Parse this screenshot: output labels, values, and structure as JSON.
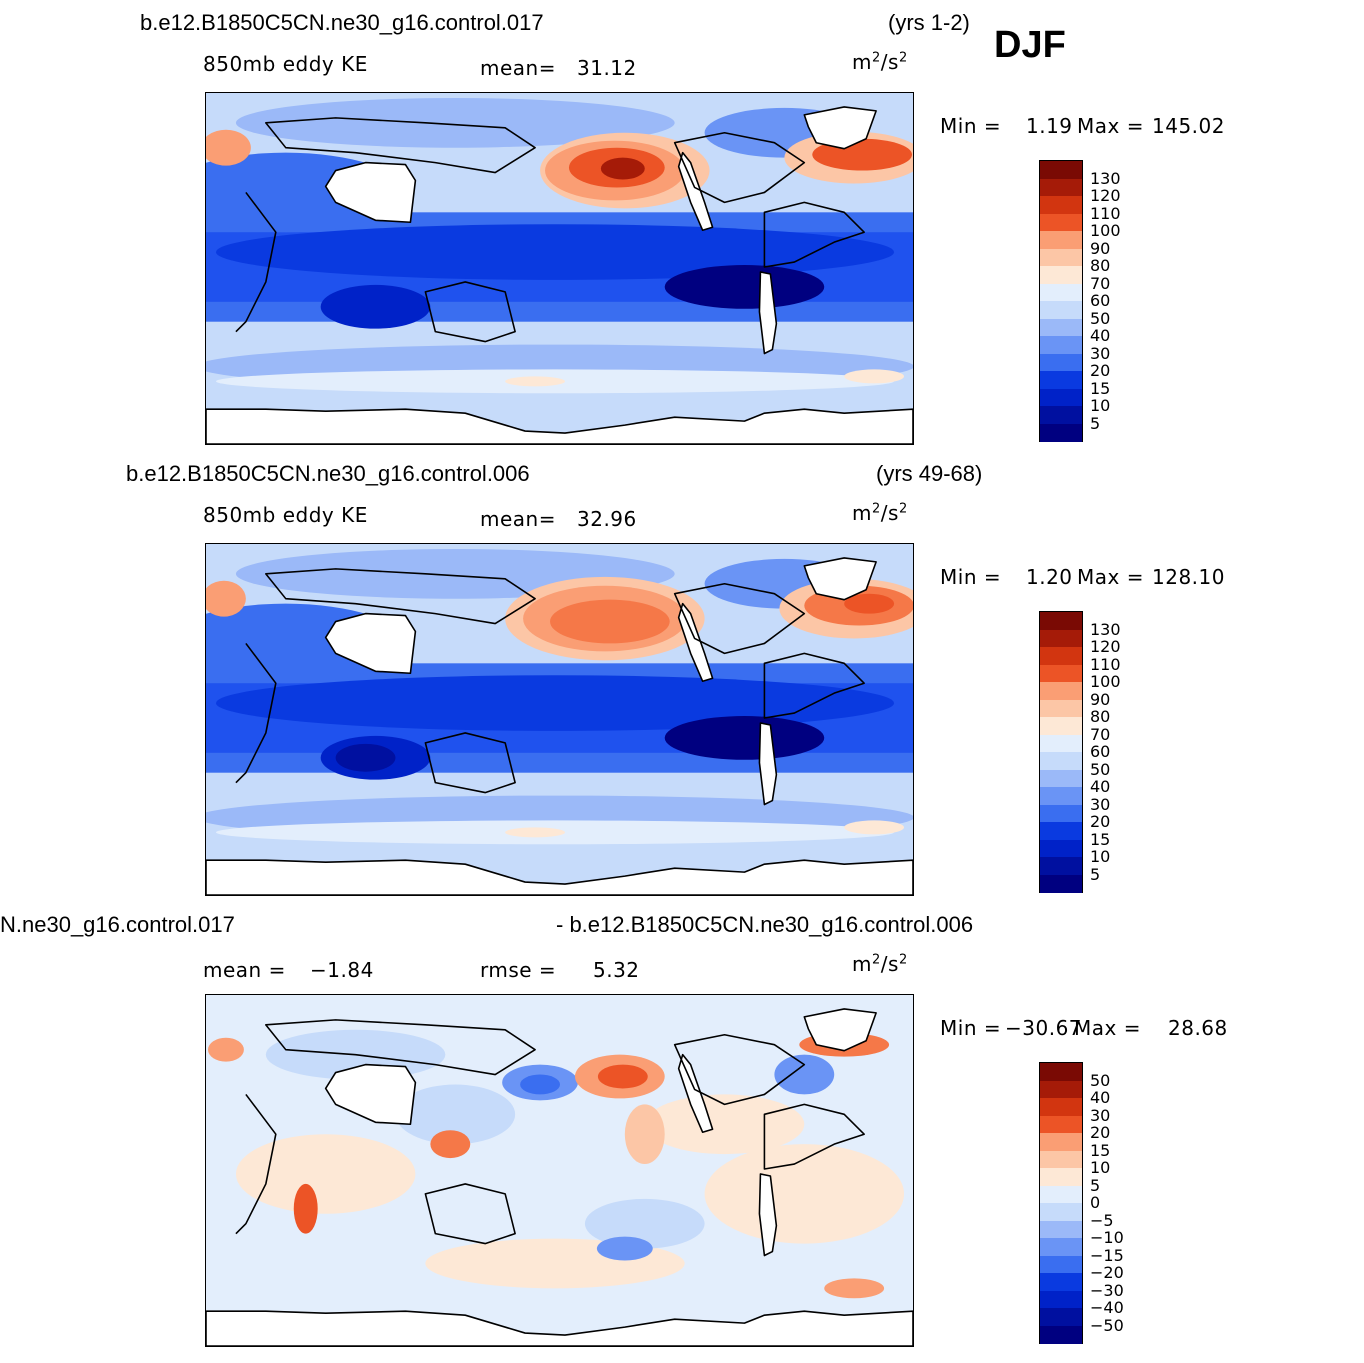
{
  "season": "DJF",
  "units": "m²/s²",
  "palette_colors": {
    "kelvin": [
      "#000080",
      "#0010a0",
      "#0022c8",
      "#0a3ae0",
      "#1f52ee",
      "#3a6ef0",
      "#6a94f5",
      "#9bb9f8",
      "#c6dbfa",
      "#e3eefc",
      "#fde8d6",
      "#fcc6a6",
      "#fa9e74",
      "#f57848",
      "#ec5426",
      "#d23510",
      "#a51b08",
      "#7a0a04"
    ]
  },
  "panels": [
    {
      "id": "top",
      "title_left": "b.e12.B1850C5CN.ne30_g16.control.017",
      "title_right": "(yrs 1-2)",
      "variable": "850mb eddy KE",
      "stat1_label": "mean=",
      "stat1_value": "31.12",
      "min_label": "Min =",
      "min_value": "1.19",
      "max_label": "Max =",
      "max_value": "145.02",
      "colorbar_levels": [
        "130",
        "120",
        "110",
        "100",
        "90",
        "80",
        "70",
        "60",
        "50",
        "40",
        "30",
        "20",
        "15",
        "10",
        "5"
      ]
    },
    {
      "id": "middle",
      "title_left": "b.e12.B1850C5CN.ne30_g16.control.006",
      "title_right": "(yrs 49-68)",
      "variable": "850mb eddy KE",
      "stat1_label": "mean=",
      "stat1_value": "32.96",
      "min_label": "Min =",
      "min_value": "1.20",
      "max_label": "Max =",
      "max_value": "128.10",
      "colorbar_levels": [
        "130",
        "120",
        "110",
        "100",
        "90",
        "80",
        "70",
        "60",
        "50",
        "40",
        "30",
        "20",
        "15",
        "10",
        "5"
      ]
    },
    {
      "id": "bottom",
      "title_left": "N.ne30_g16.control.017",
      "title_right": "- b.e12.B1850C5CN.ne30_g16.control.006",
      "stat1_label": "mean =",
      "stat1_value": "−1.84",
      "stat2_label": "rmse =",
      "stat2_value": "5.32",
      "min_label": "Min =",
      "min_value": "−30.67",
      "max_label": "Max =",
      "max_value": "28.68",
      "colorbar_levels": [
        "50",
        "40",
        "30",
        "20",
        "15",
        "10",
        "5",
        "0",
        "−5",
        "−10",
        "−15",
        "−20",
        "−30",
        "−40",
        "−50"
      ]
    }
  ]
}
